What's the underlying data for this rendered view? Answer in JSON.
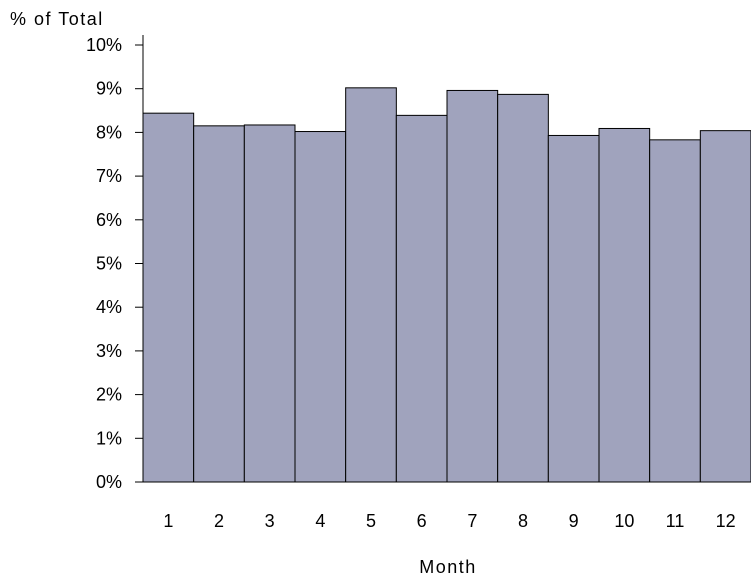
{
  "chart_data": {
    "type": "bar",
    "categories": [
      "1",
      "2",
      "3",
      "4",
      "5",
      "6",
      "7",
      "8",
      "9",
      "10",
      "11",
      "12"
    ],
    "values": [
      8.44,
      8.15,
      8.17,
      8.02,
      9.02,
      8.39,
      8.96,
      8.87,
      7.93,
      8.09,
      7.83,
      8.04
    ],
    "ylim": [
      0,
      10
    ],
    "yticks": [
      0,
      1,
      2,
      3,
      4,
      5,
      6,
      7,
      8,
      9,
      10
    ],
    "ytick_labels": [
      "0%",
      "1%",
      "2%",
      "3%",
      "4%",
      "5%",
      "6%",
      "7%",
      "8%",
      "9%",
      "10%"
    ],
    "ylabel": "% of Total",
    "xlabel": "Month",
    "bar_color": "#A0A3BD",
    "grid": false,
    "legend": "none"
  }
}
